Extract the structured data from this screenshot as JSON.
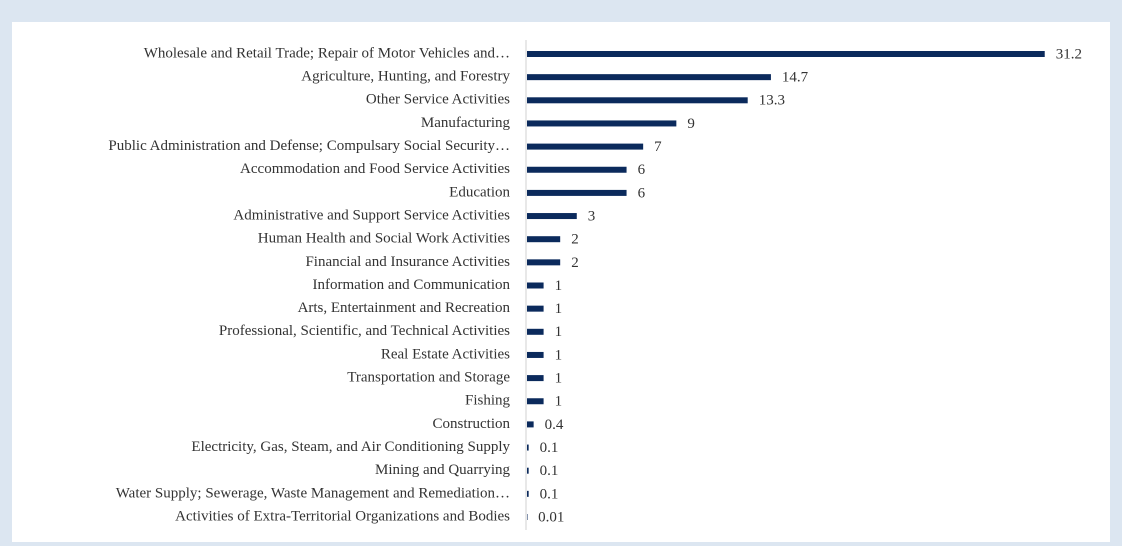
{
  "chart_data": {
    "type": "bar",
    "orientation": "horizontal",
    "categories": [
      "Wholesale and Retail Trade; Repair of Motor Vehicles and…",
      "Agriculture, Hunting, and Forestry",
      "Other Service Activities",
      "Manufacturing",
      "Public Administration and Defense; Compulsary Social Security…",
      "Accommodation and Food Service Activities",
      "Education",
      "Administrative and Support Service Activities",
      "Human Health and Social Work Activities",
      "Financial and Insurance Activities",
      "Information and Communication",
      "Arts, Entertainment and Recreation",
      "Professional, Scientific, and Technical Activities",
      "Real Estate Activities",
      "Transportation and Storage",
      "Fishing",
      "Construction",
      "Electricity, Gas, Steam, and Air Conditioning Supply",
      "Mining and Quarrying",
      "Water Supply; Sewerage, Waste Management and Remediation…",
      "Activities of Extra-Territorial Organizations and Bodies"
    ],
    "values": [
      31.2,
      14.7,
      13.3,
      9,
      7,
      6,
      6,
      3,
      2,
      2,
      1,
      1,
      1,
      1,
      1,
      1,
      0.4,
      0.1,
      0.1,
      0.1,
      0.01
    ],
    "color": "#0b2a5c",
    "xlim": [
      0,
      32
    ]
  }
}
